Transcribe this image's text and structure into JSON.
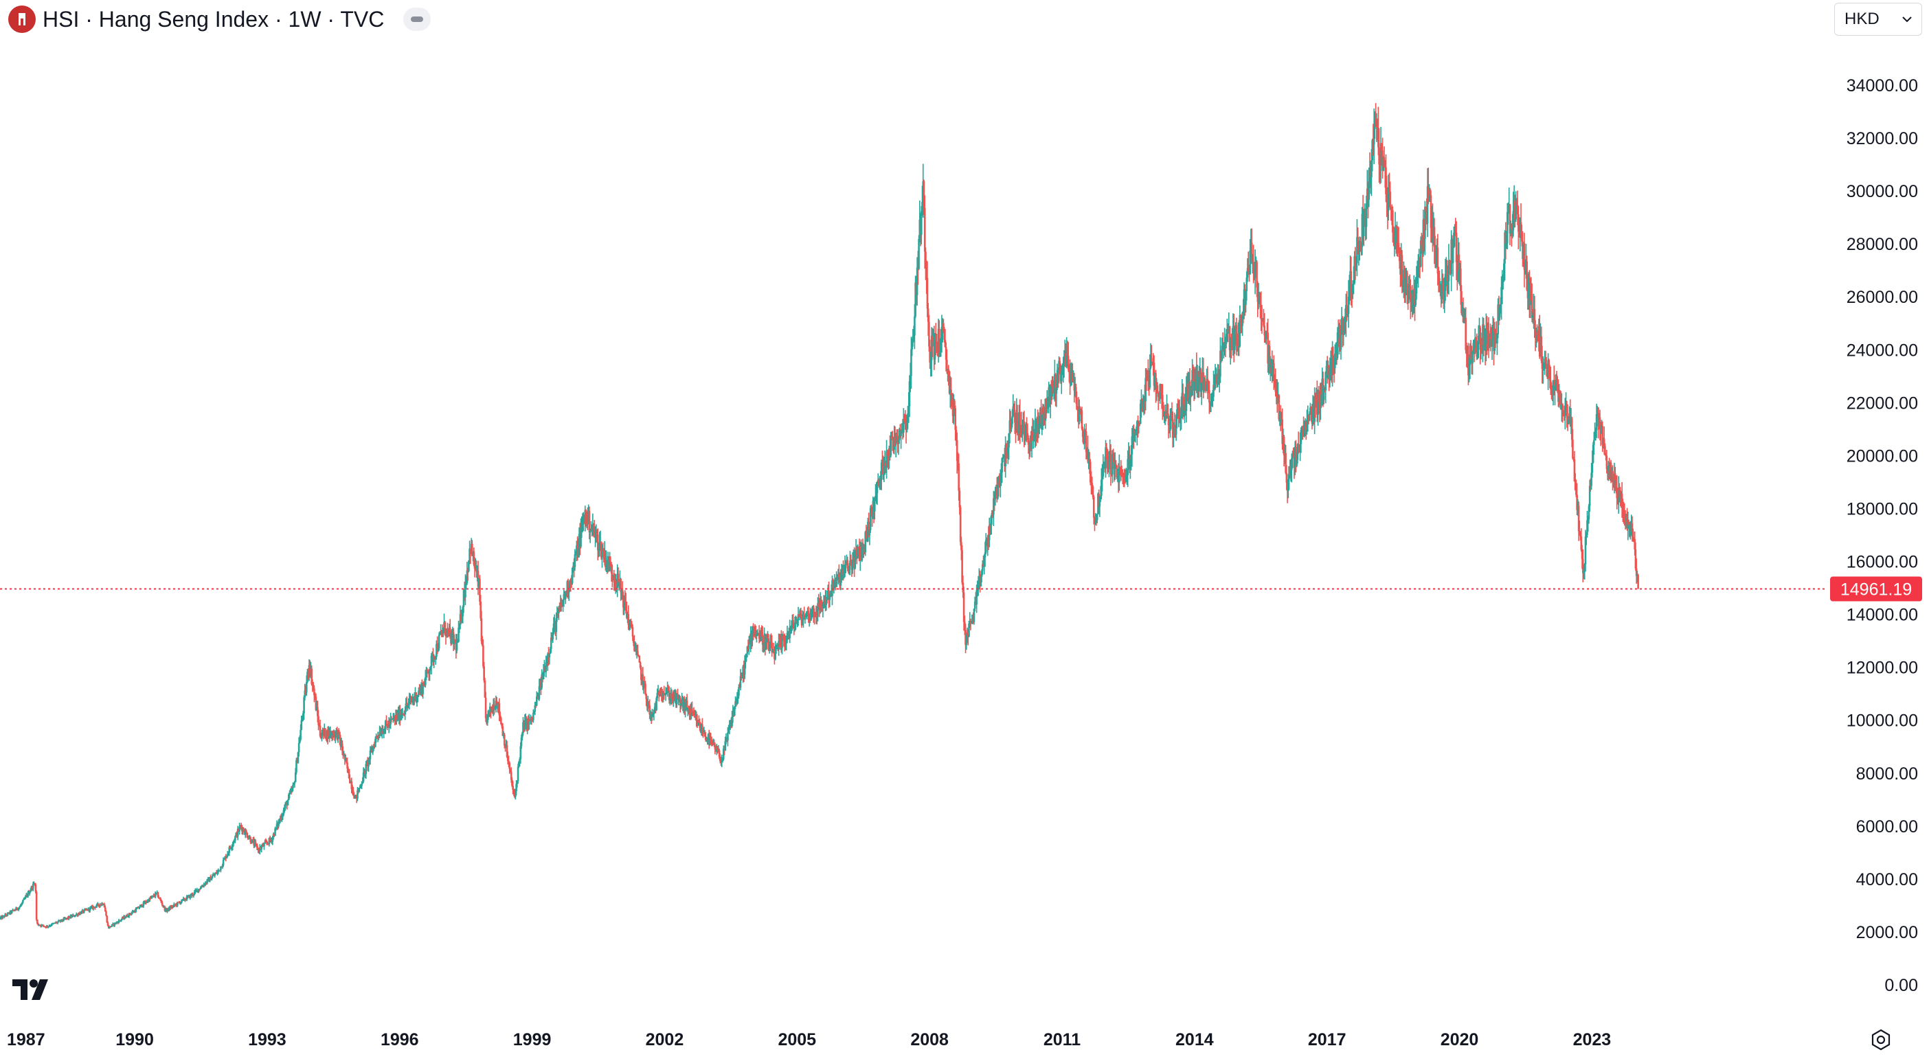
{
  "header": {
    "title": "HSI · Hang Seng Index · 1W · TVC",
    "logo_icon": "hang-seng-logo-icon",
    "collapse_icon": "minus-pill-icon"
  },
  "currency": {
    "label": "HKD",
    "icon": "chevron-down-icon"
  },
  "colors": {
    "up": "#26a69a",
    "down": "#ef5350",
    "last_price": "#f23645",
    "text": "#131722"
  },
  "footer": {
    "brand_icon": "tradingview-logo-icon",
    "settings_icon": "gear-icon"
  },
  "chart_data": {
    "type": "candlestick",
    "interval": "1W",
    "currency": "HKD",
    "last_price": "14961.19",
    "last_value": 14961.19,
    "ylim": [
      0,
      35000
    ],
    "y_ticks": [
      "0.00",
      "2000.00",
      "4000.00",
      "6000.00",
      "8000.00",
      "10000.00",
      "12000.00",
      "14000.00",
      "16000.00",
      "18000.00",
      "20000.00",
      "22000.00",
      "24000.00",
      "26000.00",
      "28000.00",
      "30000.00",
      "32000.00",
      "34000.00"
    ],
    "x_ticks": [
      "1987",
      "1990",
      "1993",
      "1996",
      "1999",
      "2002",
      "2005",
      "2008",
      "2011",
      "2014",
      "2017",
      "2020",
      "2023"
    ],
    "x_range": [
      1986.95,
      2028.33
    ],
    "price_path": [
      [
        1986.95,
        2500
      ],
      [
        1987.4,
        2950
      ],
      [
        1987.75,
        3900
      ],
      [
        1987.78,
        2300
      ],
      [
        1988.0,
        2200
      ],
      [
        1988.6,
        2600
      ],
      [
        1989.3,
        3100
      ],
      [
        1989.4,
        2150
      ],
      [
        1990.0,
        2800
      ],
      [
        1990.5,
        3450
      ],
      [
        1990.7,
        2800
      ],
      [
        1991.3,
        3400
      ],
      [
        1991.9,
        4300
      ],
      [
        1992.4,
        6000
      ],
      [
        1992.8,
        5100
      ],
      [
        1993.1,
        5500
      ],
      [
        1993.6,
        7500
      ],
      [
        1993.95,
        12200
      ],
      [
        1994.2,
        9500
      ],
      [
        1994.6,
        9500
      ],
      [
        1995.0,
        7000
      ],
      [
        1995.5,
        9500
      ],
      [
        1996.0,
        10200
      ],
      [
        1996.5,
        11200
      ],
      [
        1997.0,
        13500
      ],
      [
        1997.3,
        12800
      ],
      [
        1997.6,
        16600
      ],
      [
        1997.8,
        15000
      ],
      [
        1997.95,
        10000
      ],
      [
        1998.2,
        10800
      ],
      [
        1998.4,
        9000
      ],
      [
        1998.6,
        7000
      ],
      [
        1998.8,
        9800
      ],
      [
        1999.0,
        10000
      ],
      [
        1999.5,
        13500
      ],
      [
        1999.9,
        15500
      ],
      [
        2000.2,
        17800
      ],
      [
        2000.7,
        16000
      ],
      [
        2001.0,
        15000
      ],
      [
        2001.3,
        13000
      ],
      [
        2001.7,
        10000
      ],
      [
        2001.9,
        11200
      ],
      [
        2002.5,
        10500
      ],
      [
        2002.9,
        9500
      ],
      [
        2003.3,
        8500
      ],
      [
        2003.8,
        12000
      ],
      [
        2004.0,
        13500
      ],
      [
        2004.5,
        12500
      ],
      [
        2005.0,
        13800
      ],
      [
        2005.5,
        14200
      ],
      [
        2006.0,
        15500
      ],
      [
        2006.5,
        16500
      ],
      [
        2007.0,
        20000
      ],
      [
        2007.5,
        21500
      ],
      [
        2007.8,
        29000
      ],
      [
        2007.85,
        30000
      ],
      [
        2008.0,
        24000
      ],
      [
        2008.3,
        24500
      ],
      [
        2008.6,
        21000
      ],
      [
        2008.8,
        13000
      ],
      [
        2009.0,
        14000
      ],
      [
        2009.5,
        18500
      ],
      [
        2009.9,
        21500
      ],
      [
        2010.3,
        20500
      ],
      [
        2010.9,
        23000
      ],
      [
        2011.1,
        23800
      ],
      [
        2011.6,
        20000
      ],
      [
        2011.75,
        17500
      ],
      [
        2012.0,
        20000
      ],
      [
        2012.4,
        19000
      ],
      [
        2013.0,
        23300
      ],
      [
        2013.5,
        21000
      ],
      [
        2014.0,
        23000
      ],
      [
        2014.4,
        22300
      ],
      [
        2014.7,
        24500
      ],
      [
        2015.0,
        24500
      ],
      [
        2015.3,
        27800
      ],
      [
        2015.6,
        24500
      ],
      [
        2015.9,
        22000
      ],
      [
        2016.1,
        19000
      ],
      [
        2016.5,
        21000
      ],
      [
        2016.9,
        22500
      ],
      [
        2017.3,
        24500
      ],
      [
        2017.9,
        29500
      ],
      [
        2018.08,
        32500
      ],
      [
        2018.3,
        30500
      ],
      [
        2018.7,
        27000
      ],
      [
        2018.95,
        25800
      ],
      [
        2019.3,
        29800
      ],
      [
        2019.6,
        26000
      ],
      [
        2019.9,
        28200
      ],
      [
        2020.2,
        23500
      ],
      [
        2020.5,
        24500
      ],
      [
        2020.8,
        24200
      ],
      [
        2021.1,
        29000
      ],
      [
        2021.3,
        29000
      ],
      [
        2021.6,
        26000
      ],
      [
        2021.9,
        23500
      ],
      [
        2022.2,
        22500
      ],
      [
        2022.5,
        21500
      ],
      [
        2022.8,
        15500
      ],
      [
        2022.95,
        18500
      ],
      [
        2023.1,
        21500
      ],
      [
        2023.4,
        19500
      ],
      [
        2023.7,
        18000
      ],
      [
        2023.95,
        16800
      ],
      [
        2024.0,
        15500
      ],
      [
        2024.05,
        14961.19
      ]
    ]
  }
}
